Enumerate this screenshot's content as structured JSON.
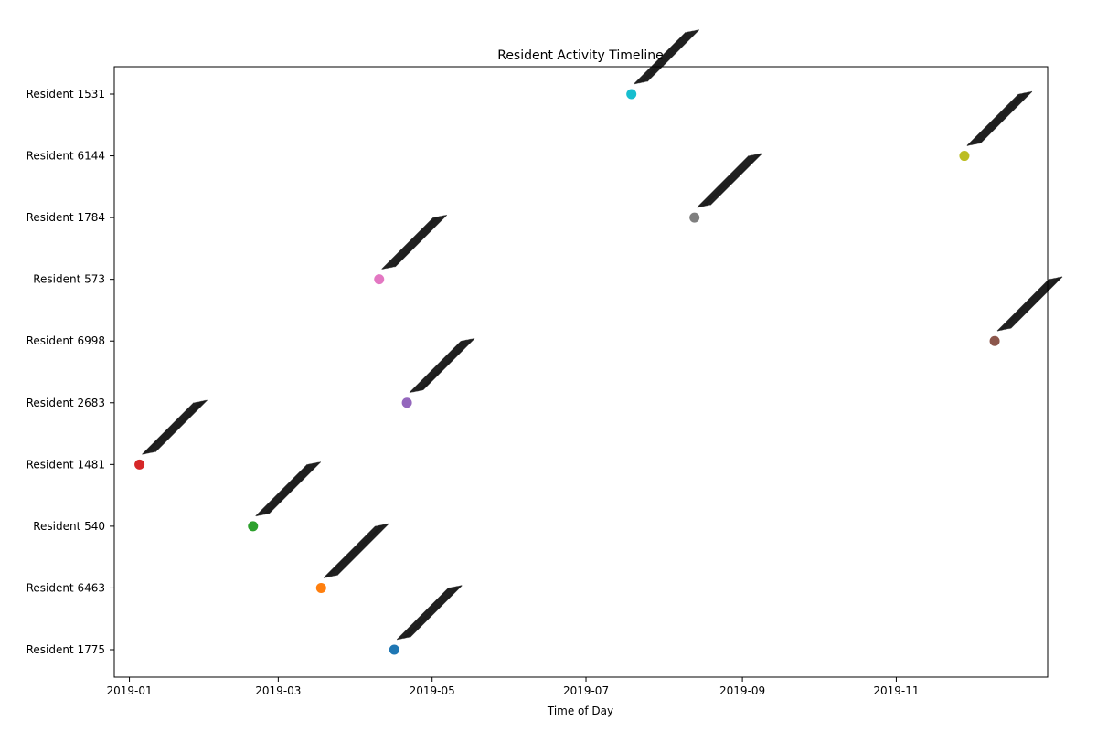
{
  "chart_data": {
    "type": "scatter",
    "title": "Resident Activity Timeline",
    "xlabel": "Time of Day",
    "ylabel": "",
    "x_axis_type": "date",
    "xlim": [
      "2018-12-26",
      "2019-12-31"
    ],
    "x_ticks": [
      "2019-01",
      "2019-03",
      "2019-05",
      "2019-07",
      "2019-09",
      "2019-11"
    ],
    "categories": [
      "Resident 1775",
      "Resident 6463",
      "Resident 540",
      "Resident 1481",
      "Resident 2683",
      "Resident 6998",
      "Resident 573",
      "Resident 1784",
      "Resident 6144",
      "Resident 1531"
    ],
    "grid": false,
    "legend": "none",
    "series": [
      {
        "category": "Resident 1775",
        "date": "2019-04-16",
        "color": "#1f77b4"
      },
      {
        "category": "Resident 6463",
        "date": "2019-03-18",
        "color": "#ff7f0e"
      },
      {
        "category": "Resident 540",
        "date": "2019-02-19",
        "color": "#2ca02c"
      },
      {
        "category": "Resident 1481",
        "date": "2019-01-05",
        "color": "#d62728"
      },
      {
        "category": "Resident 2683",
        "date": "2019-04-21",
        "color": "#9467bd"
      },
      {
        "category": "Resident 6998",
        "date": "2019-12-10",
        "color": "#8c564b"
      },
      {
        "category": "Resident 573",
        "date": "2019-04-10",
        "color": "#e377c2"
      },
      {
        "category": "Resident 1784",
        "date": "2019-08-13",
        "color": "#7f7f7f"
      },
      {
        "category": "Resident 6144",
        "date": "2019-11-28",
        "color": "#bcbd22"
      },
      {
        "category": "Resident 1531",
        "date": "2019-07-19",
        "color": "#17becf"
      }
    ],
    "annotation_style": "dense overlapping black diagonal timestamp labels from each point"
  }
}
